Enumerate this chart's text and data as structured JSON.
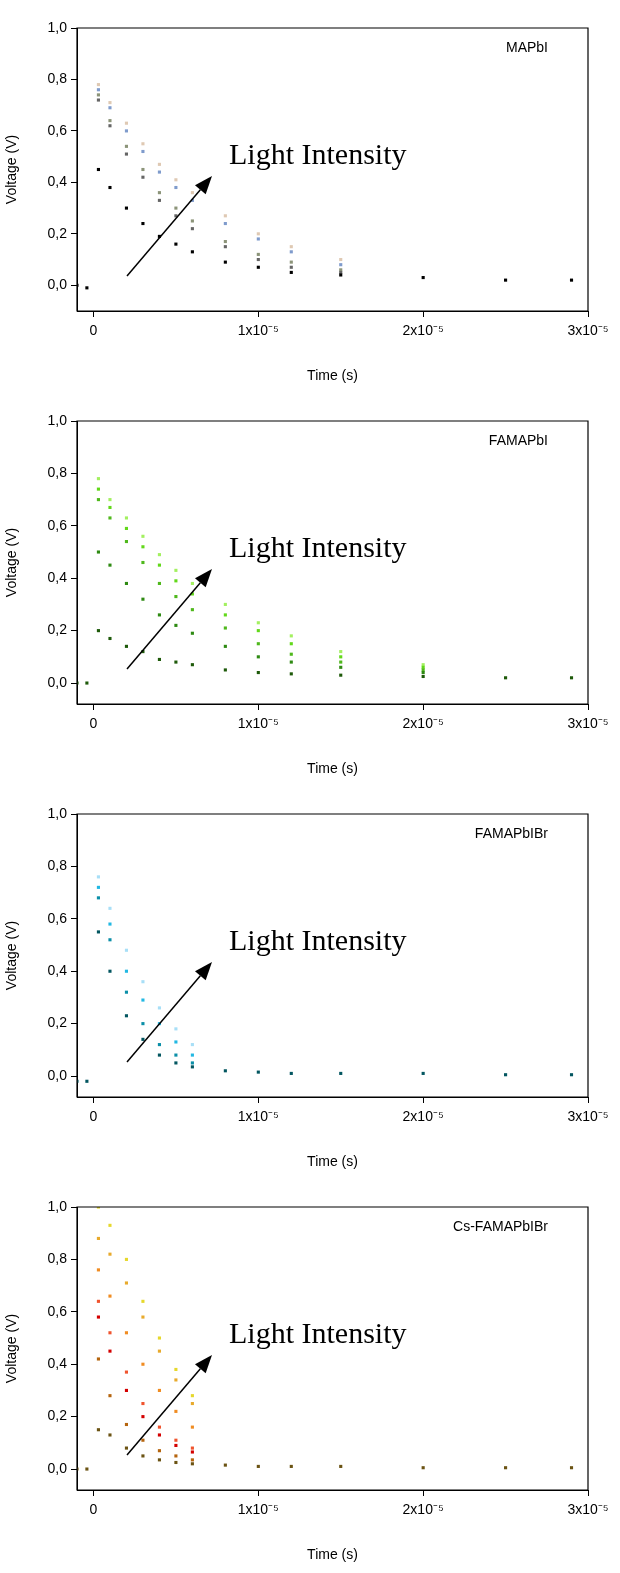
{
  "chart_data": [
    {
      "type": "scatter",
      "marker": "square",
      "xlabel": "Time (s)",
      "ylabel": "Voltage (V)",
      "annotations": [
        "MAPbI",
        "Light Intensity"
      ],
      "xlim": [
        -1e-06,
        3e-05
      ],
      "ylim": [
        -0.1,
        1.0
      ],
      "xticks": [
        {
          "value": 0,
          "label": "0"
        },
        {
          "value": 1e-05,
          "label": "1x10⁻⁵"
        },
        {
          "value": 2e-05,
          "label": "2x10⁻⁵"
        },
        {
          "value": 3e-05,
          "label": "3x10⁻⁵"
        }
      ],
      "yticks": [
        {
          "value": 0,
          "label": "0,0"
        },
        {
          "value": 0.2,
          "label": "0,2"
        },
        {
          "value": 0.4,
          "label": "0,4"
        },
        {
          "value": 0.6,
          "label": "0,6"
        },
        {
          "value": 0.8,
          "label": "0,8"
        },
        {
          "value": 1.0,
          "label": "1,0"
        }
      ],
      "x": [
        -1e-06,
        -4e-07,
        3e-07,
        1e-06,
        2e-06,
        3e-06,
        4e-06,
        5e-06,
        6e-06,
        8e-06,
        1e-05,
        1.2e-05,
        1.5e-05,
        2e-05,
        2.5e-05,
        2.9e-05
      ],
      "series": [
        {
          "color": "#000000",
          "values": [
            0,
            -0.01,
            0.45,
            0.38,
            0.3,
            0.24,
            0.19,
            0.16,
            0.13,
            0.09,
            0.07,
            0.05,
            0.04,
            0.03,
            0.02,
            0.02
          ]
        },
        {
          "color": "#656565",
          "x": [
            3e-07,
            1e-06,
            2e-06,
            3e-06,
            4e-06,
            5e-06,
            6e-06,
            8e-06,
            1e-05,
            1.2e-05,
            1.5e-05
          ],
          "values": [
            0.72,
            0.62,
            0.51,
            0.42,
            0.33,
            0.27,
            0.22,
            0.15,
            0.1,
            0.07,
            0.05
          ]
        },
        {
          "color": "#8c9479",
          "x": [
            3e-07,
            1e-06,
            2e-06,
            3e-06,
            4e-06,
            5e-06,
            6e-06,
            8e-06,
            1e-05,
            1.2e-05,
            1.5e-05
          ],
          "values": [
            0.74,
            0.64,
            0.54,
            0.45,
            0.36,
            0.3,
            0.25,
            0.17,
            0.12,
            0.09,
            0.06
          ]
        },
        {
          "color": "#7f9bcc",
          "x": [
            3e-07,
            1e-06,
            2e-06,
            3e-06,
            4e-06,
            5e-06,
            6e-06,
            8e-06,
            1e-05,
            1.2e-05,
            1.5e-05
          ],
          "values": [
            0.76,
            0.69,
            0.6,
            0.52,
            0.44,
            0.38,
            0.33,
            0.24,
            0.18,
            0.13,
            0.08
          ]
        },
        {
          "color": "#dfc9b3",
          "x": [
            3e-07,
            1e-06,
            2e-06,
            3e-06,
            4e-06,
            5e-06,
            6e-06,
            8e-06,
            1e-05,
            1.2e-05,
            1.5e-05
          ],
          "values": [
            0.78,
            0.71,
            0.63,
            0.55,
            0.47,
            0.41,
            0.36,
            0.27,
            0.2,
            0.15,
            0.1
          ]
        }
      ]
    },
    {
      "type": "scatter",
      "marker": "square",
      "xlabel": "Time (s)",
      "ylabel": "Voltage (V)",
      "annotations": [
        "FAMAPbI",
        "Light Intensity"
      ],
      "xlim": [
        -1e-06,
        3e-05
      ],
      "ylim": [
        -0.08,
        1.0
      ],
      "xticks": [
        {
          "value": 0,
          "label": "0"
        },
        {
          "value": 1e-05,
          "label": "1x10⁻⁵"
        },
        {
          "value": 2e-05,
          "label": "2x10⁻⁵"
        },
        {
          "value": 3e-05,
          "label": "3x10⁻⁵"
        }
      ],
      "yticks": [
        {
          "value": 0,
          "label": "0,0"
        },
        {
          "value": 0.2,
          "label": "0,2"
        },
        {
          "value": 0.4,
          "label": "0,4"
        },
        {
          "value": 0.6,
          "label": "0,6"
        },
        {
          "value": 0.8,
          "label": "0,8"
        },
        {
          "value": 1.0,
          "label": "1,0"
        }
      ],
      "x": [
        -1e-06,
        -4e-07,
        3e-07,
        1e-06,
        2e-06,
        3e-06,
        4e-06,
        5e-06,
        6e-06,
        8e-06,
        1e-05,
        1.2e-05,
        1.5e-05,
        2e-05,
        2.5e-05,
        2.9e-05
      ],
      "series": [
        {
          "color": "#1e5a0a",
          "values": [
            0,
            0,
            0.2,
            0.17,
            0.14,
            0.12,
            0.09,
            0.08,
            0.07,
            0.05,
            0.04,
            0.035,
            0.03,
            0.025,
            0.02,
            0.02
          ]
        },
        {
          "color": "#2e8a12",
          "x": [
            3e-07,
            1e-06,
            2e-06,
            3e-06,
            4e-06,
            5e-06,
            6e-06,
            8e-06,
            1e-05,
            1.2e-05,
            1.5e-05,
            2e-05
          ],
          "values": [
            0.5,
            0.45,
            0.38,
            0.32,
            0.26,
            0.22,
            0.19,
            0.14,
            0.1,
            0.08,
            0.06,
            0.04
          ]
        },
        {
          "color": "#4fb81c",
          "x": [
            3e-07,
            1e-06,
            2e-06,
            3e-06,
            4e-06,
            5e-06,
            6e-06,
            8e-06,
            1e-05,
            1.2e-05,
            1.5e-05,
            2e-05
          ],
          "values": [
            0.7,
            0.63,
            0.54,
            0.46,
            0.38,
            0.33,
            0.28,
            0.21,
            0.15,
            0.11,
            0.08,
            0.05
          ]
        },
        {
          "color": "#62d81a",
          "x": [
            3e-07,
            1e-06,
            2e-06,
            3e-06,
            4e-06,
            5e-06,
            6e-06,
            8e-06,
            1e-05,
            1.2e-05,
            1.5e-05,
            2e-05
          ],
          "values": [
            0.74,
            0.67,
            0.59,
            0.52,
            0.45,
            0.39,
            0.34,
            0.26,
            0.2,
            0.15,
            0.1,
            0.06
          ]
        },
        {
          "color": "#a3f060",
          "x": [
            3e-07,
            1e-06,
            2e-06,
            3e-06,
            4e-06,
            5e-06,
            6e-06,
            8e-06,
            1e-05,
            1.2e-05,
            1.5e-05,
            2e-05
          ],
          "values": [
            0.78,
            0.7,
            0.63,
            0.56,
            0.49,
            0.43,
            0.38,
            0.3,
            0.23,
            0.18,
            0.12,
            0.07
          ]
        }
      ]
    },
    {
      "type": "scatter",
      "marker": "square",
      "xlabel": "Time (s)",
      "ylabel": "Voltage (V)",
      "annotations": [
        "FAMAPbIBr",
        "Light Intensity"
      ],
      "xlim": [
        -1e-06,
        3e-05
      ],
      "ylim": [
        -0.08,
        1.0
      ],
      "xticks": [
        {
          "value": 0,
          "label": "0"
        },
        {
          "value": 1e-05,
          "label": "1x10⁻⁵"
        },
        {
          "value": 2e-05,
          "label": "2x10⁻⁵"
        },
        {
          "value": 3e-05,
          "label": "3x10⁻⁵"
        }
      ],
      "yticks": [
        {
          "value": 0,
          "label": "0,0"
        },
        {
          "value": 0.2,
          "label": "0,2"
        },
        {
          "value": 0.4,
          "label": "0,4"
        },
        {
          "value": 0.6,
          "label": "0,6"
        },
        {
          "value": 0.8,
          "label": "0,8"
        },
        {
          "value": 1.0,
          "label": "1,0"
        }
      ],
      "x": [
        -1e-06,
        -4e-07,
        3e-07,
        1e-06,
        2e-06,
        3e-06,
        4e-06,
        5e-06,
        6e-06,
        8e-06,
        1e-05,
        1.2e-05,
        1.5e-05,
        2e-05,
        2.5e-05,
        2.9e-05
      ],
      "series": [
        {
          "color": "#035660",
          "values": [
            -0.02,
            -0.02,
            0.55,
            0.4,
            0.23,
            0.14,
            0.08,
            0.05,
            0.035,
            0.02,
            0.015,
            0.01,
            0.01,
            0.01,
            0.005,
            0.005
          ]
        },
        {
          "color": "#0b8fa8",
          "x": [
            3e-07,
            1e-06,
            2e-06,
            3e-06,
            4e-06,
            5e-06,
            6e-06
          ],
          "values": [
            0.68,
            0.52,
            0.32,
            0.2,
            0.12,
            0.08,
            0.05
          ]
        },
        {
          "color": "#22b8e3",
          "x": [
            3e-07,
            1e-06,
            2e-06,
            3e-06,
            4e-06,
            5e-06,
            6e-06
          ],
          "values": [
            0.72,
            0.58,
            0.4,
            0.29,
            0.2,
            0.13,
            0.08
          ]
        },
        {
          "color": "#a8dff7",
          "x": [
            3e-07,
            1e-06,
            2e-06,
            3e-06,
            4e-06,
            5e-06,
            6e-06
          ],
          "values": [
            0.76,
            0.64,
            0.48,
            0.36,
            0.26,
            0.18,
            0.12
          ]
        }
      ]
    },
    {
      "type": "scatter",
      "marker": "square",
      "xlabel": "Time (s)",
      "ylabel": "Voltage (V)",
      "annotations": [
        "Cs-FAMAPbIBr",
        "Light Intensity"
      ],
      "xlim": [
        -1e-06,
        3e-05
      ],
      "ylim": [
        -0.08,
        1.0
      ],
      "xticks": [
        {
          "value": 0,
          "label": "0"
        },
        {
          "value": 1e-05,
          "label": "1x10⁻⁵"
        },
        {
          "value": 2e-05,
          "label": "2x10⁻⁵"
        },
        {
          "value": 3e-05,
          "label": "3x10⁻⁵"
        }
      ],
      "yticks": [
        {
          "value": 0,
          "label": "0,0"
        },
        {
          "value": 0.2,
          "label": "0,2"
        },
        {
          "value": 0.4,
          "label": "0,4"
        },
        {
          "value": 0.6,
          "label": "0,6"
        },
        {
          "value": 0.8,
          "label": "0,8"
        },
        {
          "value": 1.0,
          "label": "1,0"
        }
      ],
      "x": [
        -1e-06,
        -4e-07,
        3e-07,
        1e-06,
        2e-06,
        3e-06,
        4e-06,
        5e-06,
        6e-06,
        8e-06,
        1e-05,
        1.2e-05,
        1.5e-05,
        2e-05,
        2.5e-05,
        2.9e-05
      ],
      "series": [
        {
          "color": "#6b5313",
          "values": [
            0,
            0,
            0.15,
            0.13,
            0.08,
            0.05,
            0.035,
            0.025,
            0.02,
            0.015,
            0.01,
            0.01,
            0.01,
            0.005,
            0.005,
            0.005
          ]
        },
        {
          "color": "#b5650e",
          "x": [
            3e-07,
            1e-06,
            2e-06,
            3e-06,
            4e-06,
            5e-06,
            6e-06
          ],
          "values": [
            0.42,
            0.28,
            0.17,
            0.11,
            0.07,
            0.05,
            0.035
          ]
        },
        {
          "color": "#d40000",
          "x": [
            3e-07,
            1e-06,
            2e-06,
            3e-06,
            4e-06,
            5e-06,
            6e-06
          ],
          "values": [
            0.58,
            0.45,
            0.3,
            0.2,
            0.13,
            0.09,
            0.065
          ]
        },
        {
          "color": "#f0542e",
          "x": [
            3e-07,
            1e-06,
            2e-06,
            3e-06,
            4e-06,
            5e-06,
            6e-06
          ],
          "values": [
            0.64,
            0.52,
            0.37,
            0.25,
            0.16,
            0.11,
            0.08
          ]
        },
        {
          "color": "#f08c22",
          "x": [
            3e-07,
            1e-06,
            2e-06,
            3e-06,
            4e-06,
            5e-06,
            6e-06
          ],
          "values": [
            0.76,
            0.66,
            0.52,
            0.4,
            0.3,
            0.22,
            0.16
          ]
        },
        {
          "color": "#e8aa2c",
          "x": [
            3e-07,
            1e-06,
            2e-06,
            3e-06,
            4e-06,
            5e-06,
            6e-06
          ],
          "values": [
            0.88,
            0.82,
            0.71,
            0.58,
            0.45,
            0.34,
            0.25
          ]
        },
        {
          "color": "#e6d82c",
          "x": [
            3e-07,
            1e-06,
            2e-06,
            3e-06,
            4e-06,
            5e-06,
            6e-06
          ],
          "values": [
            1.0,
            0.93,
            0.8,
            0.64,
            0.5,
            0.38,
            0.28
          ]
        }
      ]
    }
  ]
}
